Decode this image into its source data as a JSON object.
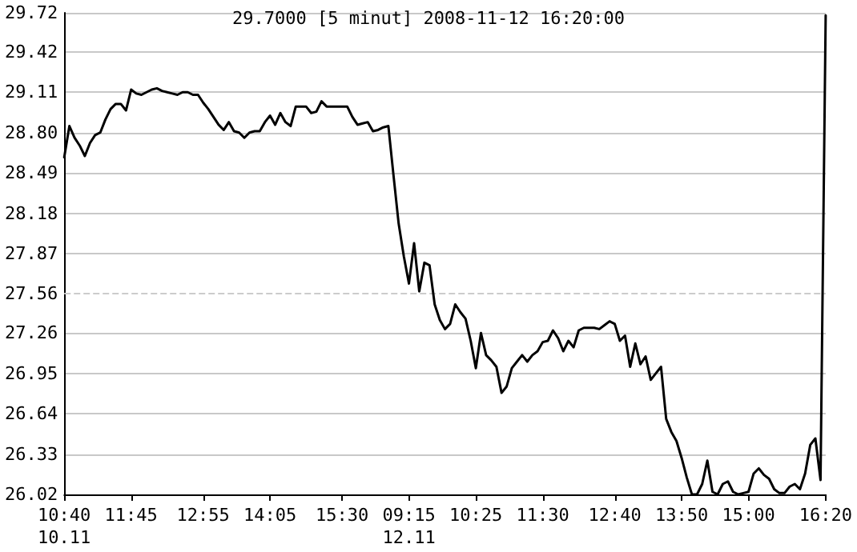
{
  "chart_data": {
    "type": "line",
    "title": "29.7000 [5 minut] 2008-11-12 16:20:00",
    "categories": [
      "10:40\n10.11",
      null,
      null,
      null,
      null,
      null,
      null,
      null,
      null,
      null,
      null,
      null,
      null,
      "11:45",
      null,
      null,
      null,
      null,
      null,
      null,
      null,
      null,
      null,
      null,
      null,
      null,
      null,
      "12:55",
      null,
      null,
      null,
      null,
      null,
      null,
      null,
      null,
      null,
      null,
      null,
      null,
      "14:05",
      null,
      null,
      null,
      null,
      null,
      null,
      null,
      null,
      null,
      null,
      null,
      null,
      null,
      "15:30",
      null,
      null,
      null,
      null,
      null,
      null,
      null,
      null,
      null,
      null,
      null,
      null,
      "09:15\n12.11",
      null,
      null,
      null,
      null,
      null,
      null,
      null,
      null,
      null,
      null,
      null,
      null,
      "10:25",
      null,
      null,
      null,
      null,
      null,
      null,
      null,
      null,
      null,
      null,
      null,
      null,
      "11:30",
      null,
      null,
      null,
      null,
      null,
      null,
      null,
      null,
      null,
      null,
      null,
      null,
      null,
      "12:40",
      null,
      null,
      null,
      null,
      null,
      null,
      null,
      null,
      null,
      null,
      null,
      null,
      "13:50",
      null,
      null,
      null,
      null,
      null,
      null,
      null,
      null,
      null,
      null,
      null,
      null,
      "15:00",
      null,
      null,
      null,
      null,
      null,
      null,
      null,
      null,
      null,
      null,
      null,
      null,
      null,
      null,
      "16:20"
    ],
    "series": [
      {
        "color": "#000000",
        "values": [
          28.61,
          28.85,
          28.76,
          28.7,
          28.62,
          28.72,
          28.78,
          28.8,
          28.9,
          28.98,
          29.02,
          29.02,
          28.97,
          29.13,
          29.1,
          29.09,
          29.11,
          29.13,
          29.14,
          29.12,
          29.11,
          29.1,
          29.09,
          29.11,
          29.11,
          29.09,
          29.09,
          29.03,
          28.98,
          28.92,
          28.86,
          28.82,
          28.88,
          28.81,
          28.8,
          28.76,
          28.8,
          28.81,
          28.81,
          28.88,
          28.93,
          28.86,
          28.95,
          28.88,
          28.85,
          29.0,
          29.0,
          29.0,
          28.95,
          28.96,
          29.04,
          29.0,
          29.0,
          29.0,
          29.0,
          29.0,
          28.92,
          28.86,
          28.87,
          28.88,
          28.81,
          28.82,
          28.84,
          28.85,
          28.47,
          28.1,
          27.85,
          27.64,
          27.95,
          27.58,
          27.8,
          27.78,
          27.48,
          27.36,
          27.29,
          27.33,
          27.48,
          27.42,
          27.37,
          27.2,
          26.99,
          27.26,
          27.09,
          27.05,
          27.0,
          26.8,
          26.85,
          26.99,
          27.04,
          27.09,
          27.04,
          27.09,
          27.12,
          27.19,
          27.2,
          27.28,
          27.22,
          27.12,
          27.2,
          27.15,
          27.28,
          27.3,
          27.3,
          27.3,
          27.29,
          27.32,
          27.35,
          27.33,
          27.2,
          27.24,
          27.0,
          27.18,
          27.02,
          27.08,
          26.9,
          26.95,
          27.0,
          26.6,
          26.5,
          26.43,
          26.3,
          26.15,
          26.02,
          26.02,
          26.1,
          26.28,
          26.04,
          26.02,
          26.1,
          26.12,
          26.04,
          26.02,
          26.03,
          26.04,
          26.18,
          26.22,
          26.17,
          26.14,
          26.06,
          26.03,
          26.03,
          26.08,
          26.1,
          26.06,
          26.18,
          26.4,
          26.45,
          26.13,
          29.7
        ]
      }
    ],
    "ylim": [
      26.02,
      29.72
    ],
    "yticks": [
      26.02,
      26.33,
      26.64,
      26.95,
      27.26,
      27.56,
      27.87,
      28.18,
      28.49,
      {
        "value": 28.8,
        "label": "28.80"
      },
      29.11,
      29.42,
      29.72
    ],
    "ref_lines": [
      {
        "axis": "y",
        "value": 27.56,
        "color": "#cccccc",
        "line_style": "dashed"
      }
    ],
    "grid": "y",
    "marker": "none",
    "line_style": "solid"
  }
}
